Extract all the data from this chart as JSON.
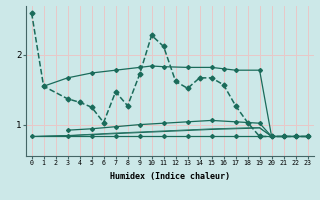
{
  "xlabel": "Humidex (Indice chaleur)",
  "background_color": "#cce8e8",
  "grid_color": "#e8c8c8",
  "line_color": "#1a6b5a",
  "xlim": [
    -0.5,
    23.5
  ],
  "ylim": [
    0.55,
    2.7
  ],
  "yticks": [
    1,
    2
  ],
  "xticks": [
    0,
    1,
    2,
    3,
    4,
    5,
    6,
    7,
    8,
    9,
    10,
    11,
    12,
    13,
    14,
    15,
    16,
    17,
    18,
    19,
    20,
    21,
    22,
    23
  ],
  "series": [
    {
      "x": [
        0,
        1,
        3,
        4,
        5,
        6,
        7,
        8,
        9,
        10,
        11,
        12,
        13,
        14,
        15,
        16,
        17,
        18,
        19,
        20,
        21,
        22,
        23
      ],
      "y": [
        2.6,
        1.55,
        1.37,
        1.32,
        1.25,
        1.03,
        1.47,
        1.27,
        1.72,
        2.28,
        2.12,
        1.62,
        1.52,
        1.67,
        1.67,
        1.57,
        1.27,
        1.03,
        0.83,
        0.83,
        0.83,
        0.83,
        0.83
      ],
      "marker": "D",
      "marker_size": 2.5,
      "linewidth": 1.1,
      "linestyle": "--"
    },
    {
      "x": [
        3,
        5,
        7,
        9,
        11,
        13,
        15,
        17,
        19,
        20,
        21,
        22,
        23
      ],
      "y": [
        0.92,
        0.94,
        0.97,
        1.0,
        1.02,
        1.04,
        1.06,
        1.04,
        1.02,
        0.83,
        0.83,
        0.83,
        0.83
      ],
      "marker": "D",
      "marker_size": 2.0,
      "linewidth": 0.9,
      "linestyle": "-"
    },
    {
      "x": [
        0,
        3,
        5,
        7,
        9,
        11,
        13,
        15,
        17,
        19,
        20,
        21,
        22,
        23
      ],
      "y": [
        0.83,
        0.83,
        0.83,
        0.83,
        0.83,
        0.83,
        0.83,
        0.83,
        0.83,
        0.83,
        0.83,
        0.83,
        0.83,
        0.83
      ],
      "marker": "D",
      "marker_size": 2.0,
      "linewidth": 0.9,
      "linestyle": "-"
    },
    {
      "x": [
        0,
        3,
        7,
        11,
        15,
        19,
        20,
        21,
        22,
        23
      ],
      "y": [
        0.83,
        0.84,
        0.87,
        0.9,
        0.93,
        0.95,
        0.83,
        0.83,
        0.83,
        0.83
      ],
      "marker": null,
      "marker_size": 0,
      "linewidth": 0.7,
      "linestyle": "-"
    },
    {
      "x": [
        0,
        3,
        7,
        11,
        15,
        19,
        20,
        21,
        22,
        23
      ],
      "y": [
        0.83,
        0.845,
        0.88,
        0.91,
        0.94,
        0.96,
        0.83,
        0.83,
        0.83,
        0.83
      ],
      "marker": null,
      "marker_size": 0,
      "linewidth": 0.6,
      "linestyle": "-"
    },
    {
      "x": [
        1,
        3,
        5,
        7,
        9,
        10,
        11,
        13,
        15,
        16,
        17,
        19,
        20,
        21,
        22,
        23
      ],
      "y": [
        1.55,
        1.67,
        1.74,
        1.78,
        1.82,
        1.84,
        1.83,
        1.82,
        1.82,
        1.8,
        1.78,
        1.78,
        0.83,
        0.83,
        0.83,
        0.83
      ],
      "marker": "D",
      "marker_size": 2.0,
      "linewidth": 0.9,
      "linestyle": "-"
    }
  ]
}
